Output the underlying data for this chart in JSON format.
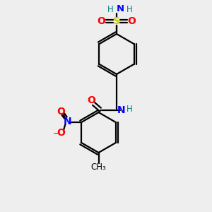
{
  "bg_color": "#eeeeee",
  "bond_color": "#000000",
  "N_color": "#0000ff",
  "O_color": "#ff0000",
  "S_color": "#cccc00",
  "H_color": "#008080",
  "figsize": [
    3.0,
    3.0
  ],
  "dpi": 100,
  "xlim": [
    0,
    10
  ],
  "ylim": [
    0,
    10
  ]
}
